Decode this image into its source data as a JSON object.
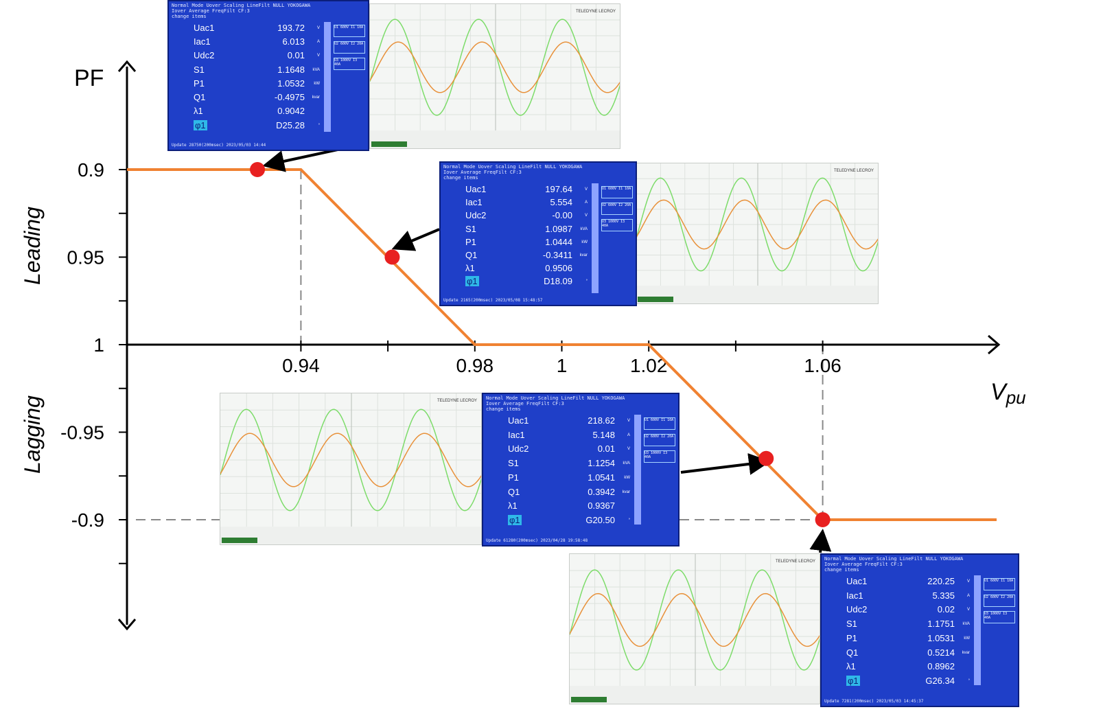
{
  "chart_data": {
    "type": "line",
    "ylabel": "PF",
    "xlabel": "V_pu",
    "region_labels": {
      "upper": "Leading",
      "lower": "Lagging"
    },
    "x_ticks": [
      "0.94",
      "0.98",
      "1",
      "1.02",
      "1.06"
    ],
    "y_ticks": [
      "0.9",
      "0.95",
      "1",
      "-0.95",
      "-0.9"
    ],
    "series": [
      {
        "points": [
          {
            "x": 0.9,
            "y": 0.9
          },
          {
            "x": 0.94,
            "y": 0.9
          },
          {
            "x": 0.98,
            "y": 1
          },
          {
            "x": 1.02,
            "y": 1
          },
          {
            "x": 1.06,
            "y": -0.9
          },
          {
            "x": 1.1,
            "y": -0.9
          }
        ],
        "color": "#f08232"
      }
    ],
    "markers": [
      {
        "x": 0.93,
        "y": 0.9
      },
      {
        "x": 0.961,
        "y": 0.95
      },
      {
        "x": 1.047,
        "y": -0.935
      },
      {
        "x": 1.06,
        "y": -0.9
      }
    ],
    "marker_color": "#e82020"
  },
  "meters": [
    {
      "header": [
        "Normal Mode  Uover  Scaling  LineFilt  NULL  YOKOGAWA",
        "Iover  Average  FreqFilt  CF:3",
        "change items"
      ],
      "rows": [
        {
          "label": "Uac1",
          "value": "193.72",
          "unit": "V"
        },
        {
          "label": "Iac1",
          "value": "6.013",
          "unit": "A"
        },
        {
          "label": "Udc2",
          "value": "0.01",
          "unit": "V"
        },
        {
          "label": "S1",
          "value": "1.1648",
          "unit": "kVA"
        },
        {
          "label": "P1",
          "value": "1.0532",
          "unit": "kW"
        },
        {
          "label": "Q1",
          "value": "-0.4975",
          "unit": "kvar"
        },
        {
          "label": "λ1",
          "value": "0.9042",
          "unit": ""
        },
        {
          "label": "φ1",
          "value": "D25.28",
          "unit": "°"
        }
      ],
      "elements": [
        "U1 600V  I1 10A",
        "U2 600V  I2 20A",
        "U3 1000V  I3 40A"
      ],
      "footer": "Update 28750(200msec)      2023/05/03 14:44"
    },
    {
      "header": [
        "Normal Mode  Uover  Scaling  LineFilt  NULL  YOKOGAWA",
        "Iover  Average  FreqFilt  CF:3",
        "change items"
      ],
      "rows": [
        {
          "label": "Uac1",
          "value": "197.64",
          "unit": "V"
        },
        {
          "label": "Iac1",
          "value": "5.554",
          "unit": "A"
        },
        {
          "label": "Udc2",
          "value": "-0.00",
          "unit": "V"
        },
        {
          "label": "S1",
          "value": "1.0987",
          "unit": "kVA"
        },
        {
          "label": "P1",
          "value": "1.0444",
          "unit": "kW"
        },
        {
          "label": "Q1",
          "value": "-0.3411",
          "unit": "kvar"
        },
        {
          "label": "λ1",
          "value": "0.9506",
          "unit": ""
        },
        {
          "label": "φ1",
          "value": "D18.09",
          "unit": "°"
        }
      ],
      "elements": [
        "U1 600V  I1 10A",
        "U2 600V  I2 20A",
        "U3 1000V  I3 40A"
      ],
      "footer": "Update 2165(200msec)      2023/05/08 15:48:57"
    },
    {
      "header": [
        "Normal Mode  Uover  Scaling  LineFilt  NULL  YOKOGAWA",
        "Iover  Average  FreqFilt  CF:3",
        "change items"
      ],
      "rows": [
        {
          "label": "Uac1",
          "value": "218.62",
          "unit": "V"
        },
        {
          "label": "Iac1",
          "value": "5.148",
          "unit": "A"
        },
        {
          "label": "Udc2",
          "value": "0.01",
          "unit": "V"
        },
        {
          "label": "S1",
          "value": "1.1254",
          "unit": "kVA"
        },
        {
          "label": "P1",
          "value": "1.0541",
          "unit": "kW"
        },
        {
          "label": "Q1",
          "value": "0.3942",
          "unit": "kvar"
        },
        {
          "label": "λ1",
          "value": "0.9367",
          "unit": ""
        },
        {
          "label": "φ1",
          "value": "G20.50",
          "unit": "°"
        }
      ],
      "elements": [
        "U1 600V  I1 10A",
        "U2 600V  I2 20A",
        "U3 1000V  I3 40A"
      ],
      "footer": "Update 61280(200msec)      2023/04/28 19:58:48"
    },
    {
      "header": [
        "Normal Mode  Uover  Scaling  LineFilt  NULL  YOKOGAWA",
        "Iover  Average  FreqFilt  CF:3",
        "change items"
      ],
      "rows": [
        {
          "label": "Uac1",
          "value": "220.25",
          "unit": "V"
        },
        {
          "label": "Iac1",
          "value": "5.335",
          "unit": "A"
        },
        {
          "label": "Udc2",
          "value": "0.02",
          "unit": "V"
        },
        {
          "label": "S1",
          "value": "1.1751",
          "unit": "kVA"
        },
        {
          "label": "P1",
          "value": "1.0531",
          "unit": "kW"
        },
        {
          "label": "Q1",
          "value": "0.5214",
          "unit": "kvar"
        },
        {
          "label": "λ1",
          "value": "0.8962",
          "unit": ""
        },
        {
          "label": "φ1",
          "value": "G26.34",
          "unit": "°"
        }
      ],
      "elements": [
        "U1 600V  I1 10A",
        "U2 600V  I2 20A",
        "U3 1000V  I3 40A"
      ],
      "footer": "Update 7281(200msec)      2023/05/03 14:45:37"
    }
  ],
  "scope_brand": "TELEDYNE LECROY",
  "colors": {
    "voltage_wave": "#7ddc6a",
    "current_wave": "#e8913a",
    "meter_bg": "#1f3fc8"
  }
}
